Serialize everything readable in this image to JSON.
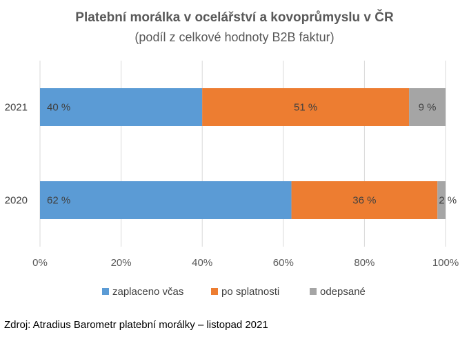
{
  "chart_data": {
    "type": "bar",
    "orientation": "horizontal",
    "stacked": true,
    "title": "Platební morálka v ocelářství a kovoprůmyslu v ČR",
    "subtitle": "(podíl z celkové hodnoty B2B faktur)",
    "categories": [
      "2021",
      "2020"
    ],
    "series": [
      {
        "name": "zaplaceno včas",
        "values": [
          40,
          62
        ],
        "labels": [
          "40 %",
          "62 %"
        ],
        "color": "#5b9bd5"
      },
      {
        "name": "po splatnosti",
        "values": [
          51,
          36
        ],
        "labels": [
          "51 %",
          "36 %"
        ],
        "color": "#ed7d31"
      },
      {
        "name": "odepsané",
        "values": [
          9,
          2
        ],
        "labels": [
          "9 %",
          "2 %"
        ],
        "color": "#a5a5a5"
      }
    ],
    "xlim": [
      0,
      100
    ],
    "x_ticks": [
      "0%",
      "20%",
      "40%",
      "60%",
      "80%",
      "100%"
    ],
    "grid": true,
    "legend_position": "bottom",
    "gridline_color": "#d9d9d9"
  },
  "source": "Zdroj: Atradius Barometr platební morálky – listopad 2021"
}
